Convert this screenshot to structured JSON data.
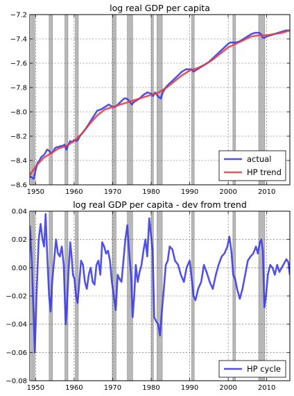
{
  "chart_data": [
    {
      "type": "line",
      "title": "log real GDP per capita",
      "xlim": [
        1948.5,
        2016
      ],
      "ylim": [
        -8.6,
        -7.2
      ],
      "x_ticks": [
        1950,
        1960,
        1970,
        1980,
        1990,
        2000,
        2010
      ],
      "x_tick_labels": [
        "1950",
        "1960",
        "1970",
        "1980",
        "1990",
        "2000",
        "2010"
      ],
      "y_ticks": [
        -8.6,
        -8.4,
        -8.2,
        -8.0,
        -7.8,
        -7.6,
        -7.4,
        -7.2
      ],
      "y_tick_labels": [
        "−8.6",
        "−8.4",
        "−8.2",
        "−8.0",
        "−7.8",
        "−7.6",
        "−7.4",
        "−7.2"
      ],
      "grid": true,
      "legend_position": "bottom-right",
      "recessions": [
        [
          1948.9,
          1949.8
        ],
        [
          1953.5,
          1954.4
        ],
        [
          1957.6,
          1958.4
        ],
        [
          1960.3,
          1961.1
        ],
        [
          1969.9,
          1970.9
        ],
        [
          1973.8,
          1975.2
        ],
        [
          1980.0,
          1980.6
        ],
        [
          1981.5,
          1982.9
        ],
        [
          1990.5,
          1991.2
        ],
        [
          2001.2,
          2001.9
        ],
        [
          2007.9,
          2009.5
        ]
      ],
      "series": [
        {
          "name": "actual",
          "color": "#3333e6",
          "x": [
            1948.5,
            1949.0,
            1949.5,
            1950.0,
            1950.5,
            1951.0,
            1951.5,
            1952.0,
            1952.5,
            1953.0,
            1953.5,
            1954.0,
            1954.5,
            1955.0,
            1955.5,
            1956.0,
            1956.5,
            1957.0,
            1957.5,
            1958.0,
            1958.5,
            1959.0,
            1959.5,
            1960.0,
            1960.5,
            1961.0,
            1961.5,
            1962.0,
            1963.0,
            1964.0,
            1965.0,
            1966.0,
            1967.0,
            1968.0,
            1969.0,
            1969.5,
            1970.0,
            1970.5,
            1971.0,
            1972.0,
            1973.0,
            1973.5,
            1974.0,
            1974.5,
            1975.0,
            1975.5,
            1976.0,
            1977.0,
            1978.0,
            1979.0,
            1980.0,
            1980.5,
            1981.0,
            1981.5,
            1982.0,
            1982.5,
            1983.0,
            1984.0,
            1985.0,
            1986.0,
            1987.0,
            1988.0,
            1989.0,
            1990.0,
            1990.5,
            1991.0,
            1992.0,
            1993.0,
            1994.0,
            1995.0,
            1996.0,
            1997.0,
            1998.0,
            1999.0,
            2000.0,
            2000.5,
            2001.0,
            2002.0,
            2003.0,
            2004.0,
            2005.0,
            2006.0,
            2007.0,
            2007.5,
            2008.0,
            2008.5,
            2009.0,
            2009.5,
            2010.0,
            2011.0,
            2012.0,
            2013.0,
            2014.0,
            2015.0,
            2016.0
          ],
          "y": [
            -8.53,
            -8.54,
            -8.55,
            -8.48,
            -8.42,
            -8.4,
            -8.37,
            -8.36,
            -8.34,
            -8.31,
            -8.32,
            -8.34,
            -8.33,
            -8.3,
            -8.29,
            -8.29,
            -8.28,
            -8.28,
            -8.27,
            -8.31,
            -8.27,
            -8.24,
            -8.25,
            -8.23,
            -8.24,
            -8.23,
            -8.2,
            -8.18,
            -8.14,
            -8.09,
            -8.04,
            -7.99,
            -7.98,
            -7.96,
            -7.94,
            -7.95,
            -7.96,
            -7.96,
            -7.95,
            -7.92,
            -7.89,
            -7.89,
            -7.9,
            -7.92,
            -7.94,
            -7.92,
            -7.91,
            -7.89,
            -7.86,
            -7.84,
            -7.85,
            -7.87,
            -7.84,
            -7.86,
            -7.88,
            -7.89,
            -7.84,
            -7.79,
            -7.76,
            -7.73,
            -7.7,
            -7.67,
            -7.65,
            -7.65,
            -7.65,
            -7.67,
            -7.65,
            -7.63,
            -7.61,
            -7.59,
            -7.56,
            -7.53,
            -7.5,
            -7.47,
            -7.44,
            -7.43,
            -7.43,
            -7.43,
            -7.42,
            -7.4,
            -7.38,
            -7.36,
            -7.35,
            -7.35,
            -7.35,
            -7.36,
            -7.39,
            -7.39,
            -7.38,
            -7.37,
            -7.36,
            -7.35,
            -7.34,
            -7.33,
            -7.33
          ]
        },
        {
          "name": "HP trend",
          "color": "#e6393e",
          "x": [
            1948.5,
            1950,
            1952,
            1954,
            1956,
            1958,
            1960,
            1962,
            1964,
            1966,
            1968,
            1970,
            1972,
            1974,
            1976,
            1978,
            1980,
            1982,
            1984,
            1986,
            1988,
            1990,
            1992,
            1994,
            1996,
            1998,
            2000,
            2002,
            2004,
            2006,
            2008,
            2010,
            2012,
            2014,
            2016
          ],
          "y": [
            -8.52,
            -8.45,
            -8.38,
            -8.34,
            -8.3,
            -8.28,
            -8.24,
            -8.18,
            -8.1,
            -8.03,
            -7.98,
            -7.96,
            -7.94,
            -7.92,
            -7.9,
            -7.88,
            -7.86,
            -7.84,
            -7.8,
            -7.75,
            -7.7,
            -7.66,
            -7.64,
            -7.61,
            -7.57,
            -7.52,
            -7.47,
            -7.44,
            -7.41,
            -7.38,
            -7.37,
            -7.37,
            -7.36,
            -7.35,
            -7.33
          ]
        }
      ]
    },
    {
      "type": "line",
      "title": "log real GDP per capita - dev from trend",
      "xlim": [
        1948.5,
        2016
      ],
      "ylim": [
        -0.08,
        0.04
      ],
      "x_ticks": [
        1950,
        1960,
        1970,
        1980,
        1990,
        2000,
        2010
      ],
      "x_tick_labels": [
        "1950",
        "1960",
        "1970",
        "1980",
        "1990",
        "2000",
        "2010"
      ],
      "y_ticks": [
        -0.08,
        -0.06,
        -0.04,
        -0.02,
        0.0,
        0.02,
        0.04
      ],
      "y_tick_labels": [
        "−0.08",
        "−0.06",
        "−0.04",
        "−0.02",
        "0.00",
        "0.02",
        "0.04"
      ],
      "grid": true,
      "legend_position": "bottom-right",
      "recessions": [
        [
          1948.9,
          1949.8
        ],
        [
          1953.5,
          1954.4
        ],
        [
          1957.6,
          1958.4
        ],
        [
          1960.3,
          1961.1
        ],
        [
          1969.9,
          1970.9
        ],
        [
          1973.8,
          1975.2
        ],
        [
          1980.0,
          1980.6
        ],
        [
          1981.5,
          1982.9
        ],
        [
          1990.5,
          1991.2
        ],
        [
          2001.2,
          2001.9
        ],
        [
          2007.9,
          2009.5
        ]
      ],
      "series": [
        {
          "name": "HP cycle",
          "color": "#3333e6",
          "x": [
            1948.5,
            1949.0,
            1949.5,
            1949.8,
            1950.3,
            1950.8,
            1951.3,
            1951.8,
            1952.2,
            1952.6,
            1953.0,
            1953.5,
            1953.9,
            1954.3,
            1954.8,
            1955.3,
            1955.8,
            1956.3,
            1956.8,
            1957.3,
            1957.8,
            1958.1,
            1958.5,
            1959.0,
            1959.3,
            1959.7,
            1960.1,
            1960.5,
            1960.9,
            1961.3,
            1961.8,
            1962.3,
            1962.8,
            1963.3,
            1963.8,
            1964.3,
            1964.8,
            1965.3,
            1965.8,
            1966.3,
            1966.8,
            1967.3,
            1967.8,
            1968.3,
            1968.8,
            1969.3,
            1969.8,
            1970.3,
            1970.8,
            1971.3,
            1971.8,
            1972.3,
            1972.8,
            1973.3,
            1973.8,
            1974.3,
            1974.8,
            1975.2,
            1975.6,
            1976.0,
            1976.5,
            1977.0,
            1977.5,
            1978.0,
            1978.5,
            1979.0,
            1979.5,
            1980.0,
            1980.4,
            1980.8,
            1981.3,
            1981.8,
            1982.3,
            1982.8,
            1983.3,
            1983.8,
            1984.3,
            1984.8,
            1985.5,
            1986.2,
            1987.0,
            1987.7,
            1988.5,
            1989.2,
            1990.0,
            1990.5,
            1991.0,
            1991.5,
            1992.2,
            1993.0,
            1993.7,
            1994.5,
            1995.2,
            1996.0,
            1996.8,
            1997.5,
            1998.3,
            1999.0,
            1999.8,
            2000.3,
            2000.8,
            2001.3,
            2001.8,
            2002.3,
            2003.0,
            2003.7,
            2004.4,
            2005.1,
            2005.8,
            2006.5,
            2007.2,
            2007.7,
            2008.2,
            2008.6,
            2009.0,
            2009.4,
            2009.8,
            2010.3,
            2010.9,
            2011.5,
            2012.1,
            2012.7,
            2013.3,
            2013.9,
            2014.5,
            2015.1,
            2015.6,
            2016.0
          ],
          "y": [
            0.03,
            0.005,
            -0.035,
            -0.06,
            -0.015,
            0.02,
            0.031,
            0.02,
            0.015,
            0.038,
            0.01,
            -0.02,
            -0.031,
            -0.01,
            0.005,
            0.02,
            0.01,
            0.008,
            0.015,
            0.002,
            -0.04,
            -0.03,
            -0.005,
            0.018,
            0.01,
            -0.005,
            -0.008,
            -0.02,
            -0.025,
            -0.012,
            0.005,
            0.002,
            -0.01,
            -0.015,
            -0.005,
            0.0,
            -0.01,
            -0.012,
            0.002,
            0.005,
            -0.005,
            0.018,
            0.015,
            0.01,
            0.012,
            0.005,
            -0.01,
            -0.02,
            -0.03,
            -0.005,
            -0.008,
            -0.01,
            0.005,
            0.02,
            0.03,
            0.01,
            -0.005,
            -0.035,
            -0.02,
            0.002,
            -0.01,
            -0.003,
            0.002,
            0.012,
            0.02,
            0.008,
            0.035,
            0.022,
            0.012,
            -0.035,
            -0.038,
            -0.04,
            -0.048,
            -0.03,
            -0.015,
            0.002,
            0.005,
            0.015,
            0.013,
            0.005,
            0.002,
            -0.005,
            -0.01,
            0.0,
            0.005,
            -0.007,
            -0.02,
            -0.023,
            -0.015,
            -0.01,
            0.002,
            -0.004,
            -0.01,
            -0.015,
            -0.005,
            0.002,
            0.008,
            0.01,
            0.015,
            0.022,
            0.012,
            -0.005,
            -0.008,
            -0.015,
            -0.022,
            -0.015,
            -0.005,
            0.005,
            0.008,
            0.01,
            0.015,
            0.01,
            0.018,
            0.02,
            0.012,
            -0.028,
            -0.02,
            -0.005,
            0.002,
            0.0,
            -0.005,
            0.002,
            -0.003,
            0.0,
            0.003,
            0.006,
            0.004,
            -0.005
          ]
        }
      ]
    }
  ]
}
